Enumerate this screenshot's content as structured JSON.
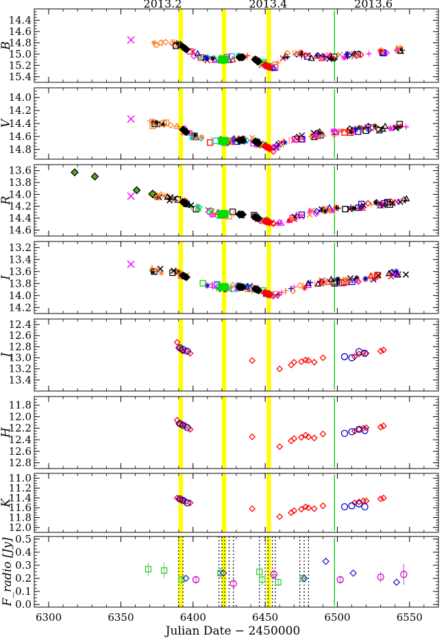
{
  "chart_data": {
    "type": "scatter",
    "xlabel": "Julian Date − 2450000",
    "xlim": [
      6290,
      6570
    ],
    "x_ticks": [
      6300,
      6350,
      6400,
      6450,
      6500,
      6550
    ],
    "top_labels": [
      {
        "text": "2013.2",
        "x": 6379
      },
      {
        "text": "2013.4",
        "x": 6452
      },
      {
        "text": "2013.6",
        "x": 6525
      }
    ],
    "yellow_bands": [
      [
        6390,
        6393
      ],
      [
        6420,
        6423
      ],
      [
        6451,
        6454
      ]
    ],
    "green_line_x": 6498,
    "radio_dotted_lines": [
      6390,
      6393,
      6418,
      6420,
      6422,
      6425,
      6428,
      6446,
      6450,
      6452,
      6455,
      6457,
      6474,
      6477,
      6480
    ],
    "panels": [
      {
        "label": "B",
        "inverted": true,
        "ylim": [
          14.2,
          15.5
        ],
        "ticks": [
          14.4,
          14.6,
          14.8,
          15.0,
          15.2,
          15.4
        ],
        "tick_labels": [
          "14.4",
          "14.6",
          "14.8",
          "15.0",
          "15.2",
          "15.4"
        ],
        "anchors": [
          [
            6372,
            14.82
          ],
          [
            6380,
            14.8
          ],
          [
            6390,
            14.82
          ],
          [
            6400,
            15.0
          ],
          [
            6410,
            15.08
          ],
          [
            6420,
            15.1
          ],
          [
            6430,
            15.06
          ],
          [
            6440,
            15.05
          ],
          [
            6450,
            15.2
          ],
          [
            6455,
            15.25
          ],
          [
            6462,
            15.05
          ],
          [
            6470,
            14.98
          ],
          [
            6480,
            15.03
          ],
          [
            6490,
            15.05
          ],
          [
            6500,
            15.05
          ],
          [
            6510,
            15.02
          ],
          [
            6520,
            15.0
          ],
          [
            6530,
            14.97
          ],
          [
            6545,
            14.92
          ]
        ],
        "outliers": [
          [
            6357,
            14.75
          ]
        ]
      },
      {
        "label": "V",
        "inverted": true,
        "ylim": [
          13.85,
          14.95
        ],
        "ticks": [
          14.0,
          14.2,
          14.4,
          14.6,
          14.8
        ],
        "tick_labels": [
          "14.0",
          "14.2",
          "14.4",
          "14.6",
          "14.8"
        ],
        "anchors": [
          [
            6372,
            14.4
          ],
          [
            6380,
            14.4
          ],
          [
            6390,
            14.45
          ],
          [
            6400,
            14.6
          ],
          [
            6410,
            14.66
          ],
          [
            6420,
            14.67
          ],
          [
            6430,
            14.66
          ],
          [
            6440,
            14.65
          ],
          [
            6450,
            14.75
          ],
          [
            6455,
            14.8
          ],
          [
            6462,
            14.72
          ],
          [
            6470,
            14.62
          ],
          [
            6480,
            14.6
          ],
          [
            6490,
            14.55
          ],
          [
            6500,
            14.55
          ],
          [
            6510,
            14.5
          ],
          [
            6520,
            14.48
          ],
          [
            6530,
            14.47
          ],
          [
            6545,
            14.43
          ]
        ],
        "outliers": [
          [
            6357,
            14.33
          ]
        ]
      },
      {
        "label": "R",
        "inverted": true,
        "ylim": [
          13.5,
          14.7
        ],
        "ticks": [
          13.6,
          13.8,
          14.0,
          14.2,
          14.4,
          14.6
        ],
        "tick_labels": [
          "13.6",
          "13.8",
          "14.0",
          "14.2",
          "14.4",
          "14.6"
        ],
        "anchors": [
          [
            6372,
            14.0
          ],
          [
            6380,
            14.05
          ],
          [
            6390,
            14.1
          ],
          [
            6400,
            14.2
          ],
          [
            6410,
            14.3
          ],
          [
            6420,
            14.33
          ],
          [
            6430,
            14.33
          ],
          [
            6440,
            14.35
          ],
          [
            6450,
            14.45
          ],
          [
            6458,
            14.5
          ],
          [
            6465,
            14.42
          ],
          [
            6475,
            14.35
          ],
          [
            6485,
            14.3
          ],
          [
            6495,
            14.26
          ],
          [
            6505,
            14.24
          ],
          [
            6515,
            14.2
          ],
          [
            6525,
            14.18
          ],
          [
            6535,
            14.15
          ],
          [
            6545,
            14.1
          ]
        ],
        "outliers": [
          [
            6357,
            14.03
          ]
        ],
        "early_points": [
          [
            6318,
            13.63
          ],
          [
            6332,
            13.7
          ],
          [
            6361,
            13.93
          ],
          [
            6372,
            13.99
          ]
        ]
      },
      {
        "label": "I",
        "inverted": true,
        "ylim": [
          13.1,
          14.3
        ],
        "ticks": [
          13.2,
          13.4,
          13.6,
          13.8,
          14.0,
          14.2
        ],
        "tick_labels": [
          "13.2",
          "13.4",
          "13.6",
          "13.8",
          "14.0",
          "14.2"
        ],
        "anchors": [
          [
            6372,
            13.58
          ],
          [
            6380,
            13.6
          ],
          [
            6390,
            13.63
          ],
          [
            6400,
            13.75
          ],
          [
            6410,
            13.83
          ],
          [
            6420,
            13.86
          ],
          [
            6430,
            13.86
          ],
          [
            6440,
            13.86
          ],
          [
            6450,
            13.96
          ],
          [
            6458,
            14.02
          ],
          [
            6465,
            13.92
          ],
          [
            6475,
            13.85
          ],
          [
            6485,
            13.8
          ],
          [
            6495,
            13.76
          ],
          [
            6505,
            13.76
          ],
          [
            6515,
            13.73
          ],
          [
            6525,
            13.7
          ],
          [
            6535,
            13.66
          ],
          [
            6545,
            13.62
          ]
        ],
        "outliers": [
          [
            6357,
            13.48
          ]
        ]
      },
      {
        "label": "J",
        "inverted": true,
        "ylim": [
          12.3,
          13.6
        ],
        "ticks": [
          12.4,
          12.6,
          12.8,
          13.0,
          13.2,
          13.4
        ],
        "tick_labels": [
          "12.4",
          "12.6",
          "12.8",
          "13.0",
          "13.2",
          "13.4"
        ],
        "diamonds": [
          [
            6389,
            12.72
          ],
          [
            6390,
            12.82
          ],
          [
            6391,
            12.84
          ],
          [
            6392,
            12.85
          ],
          [
            6393,
            12.88
          ],
          [
            6395,
            12.87
          ],
          [
            6398,
            12.92
          ],
          [
            6441,
            13.05
          ],
          [
            6460,
            13.2
          ],
          [
            6468,
            13.13
          ],
          [
            6470,
            13.08
          ],
          [
            6475,
            13.07
          ],
          [
            6478,
            13.04
          ],
          [
            6480,
            13.05
          ],
          [
            6484,
            13.08
          ],
          [
            6490,
            13.0
          ],
          [
            6512,
            12.98
          ],
          [
            6515,
            12.93
          ],
          [
            6518,
            12.91
          ],
          [
            6520,
            12.92
          ],
          [
            6530,
            12.88
          ],
          [
            6532,
            12.86
          ]
        ],
        "circles": [
          [
            6391,
            12.82
          ],
          [
            6393,
            12.85
          ],
          [
            6396,
            12.88
          ],
          [
            6505,
            12.98
          ],
          [
            6510,
            13.0
          ],
          [
            6515,
            12.89
          ],
          [
            6519,
            12.92
          ]
        ]
      },
      {
        "label": "H",
        "inverted": true,
        "ylim": [
          11.65,
          12.9
        ],
        "ticks": [
          11.8,
          12.0,
          12.2,
          12.4,
          12.6,
          12.8
        ],
        "tick_labels": [
          "11.8",
          "12.0",
          "12.2",
          "12.4",
          "12.6",
          "12.8"
        ],
        "diamonds": [
          [
            6389,
            12.06
          ],
          [
            6390,
            12.12
          ],
          [
            6391,
            12.13
          ],
          [
            6393,
            12.14
          ],
          [
            6395,
            12.16
          ],
          [
            6398,
            12.22
          ],
          [
            6441,
            12.35
          ],
          [
            6460,
            12.52
          ],
          [
            6468,
            12.42
          ],
          [
            6470,
            12.38
          ],
          [
            6475,
            12.36
          ],
          [
            6478,
            12.32
          ],
          [
            6480,
            12.35
          ],
          [
            6484,
            12.37
          ],
          [
            6490,
            12.3
          ],
          [
            6512,
            12.25
          ],
          [
            6515,
            12.22
          ],
          [
            6518,
            12.2
          ],
          [
            6520,
            12.19
          ],
          [
            6530,
            12.18
          ],
          [
            6532,
            12.16
          ]
        ],
        "circles": [
          [
            6391,
            12.12
          ],
          [
            6393,
            12.15
          ],
          [
            6396,
            12.19
          ],
          [
            6505,
            12.29
          ],
          [
            6510,
            12.26
          ],
          [
            6515,
            12.22
          ],
          [
            6519,
            12.24
          ]
        ]
      },
      {
        "label": "K",
        "inverted": true,
        "ylim": [
          10.9,
          12.1
        ],
        "ticks": [
          11.0,
          11.2,
          11.4,
          11.6,
          11.8,
          12.0
        ],
        "tick_labels": [
          "11.0",
          "11.2",
          "11.4",
          "11.6",
          "11.8",
          "12.0"
        ],
        "diamonds": [
          [
            6389,
            11.4
          ],
          [
            6390,
            11.42
          ],
          [
            6391,
            11.43
          ],
          [
            6393,
            11.45
          ],
          [
            6395,
            11.47
          ],
          [
            6398,
            11.5
          ],
          [
            6441,
            11.62
          ],
          [
            6460,
            11.78
          ],
          [
            6468,
            11.7
          ],
          [
            6470,
            11.66
          ],
          [
            6475,
            11.63
          ],
          [
            6478,
            11.58
          ],
          [
            6480,
            11.6
          ],
          [
            6484,
            11.62
          ],
          [
            6490,
            11.56
          ],
          [
            6512,
            11.5
          ],
          [
            6515,
            11.48
          ],
          [
            6518,
            11.46
          ],
          [
            6520,
            11.46
          ],
          [
            6530,
            11.42
          ],
          [
            6532,
            11.4
          ]
        ],
        "circles": [
          [
            6391,
            11.42
          ],
          [
            6393,
            11.45
          ],
          [
            6396,
            11.5
          ],
          [
            6505,
            11.58
          ],
          [
            6510,
            11.56
          ],
          [
            6515,
            11.52
          ],
          [
            6519,
            11.58
          ]
        ]
      },
      {
        "label": "F_radio [Jy]",
        "inverted": false,
        "ylim": [
          -0.02,
          0.52
        ],
        "ticks": [
          0.0,
          0.1,
          0.2,
          0.3,
          0.4,
          0.5
        ],
        "tick_labels": [
          "0.0",
          "0.1",
          "0.2",
          "0.3",
          "0.4",
          "0.5"
        ],
        "squares": [
          [
            6369,
            0.27,
            0.05
          ],
          [
            6380,
            0.26,
            0.06
          ],
          [
            6392,
            0.19,
            0.03
          ],
          [
            6419,
            0.24,
            0.04
          ],
          [
            6446,
            0.25,
            0.05
          ],
          [
            6448,
            0.19,
            0.04
          ],
          [
            6459,
            0.17,
            0.03
          ],
          [
            6476,
            0.2,
            0.03
          ]
        ],
        "circles_open": [
          [
            6402,
            0.19,
            0.03
          ],
          [
            6428,
            0.16,
            0.03
          ],
          [
            6456,
            0.23,
            0.04
          ],
          [
            6502,
            0.19,
            0.03
          ],
          [
            6530,
            0.21,
            0.04
          ],
          [
            6546,
            0.23,
            0.08
          ]
        ],
        "diamonds_blue": [
          [
            6395,
            0.2
          ],
          [
            6421,
            0.24
          ],
          [
            6477,
            0.2
          ],
          [
            6492,
            0.33
          ],
          [
            6511,
            0.24
          ],
          [
            6541,
            0.17
          ]
        ]
      }
    ]
  }
}
